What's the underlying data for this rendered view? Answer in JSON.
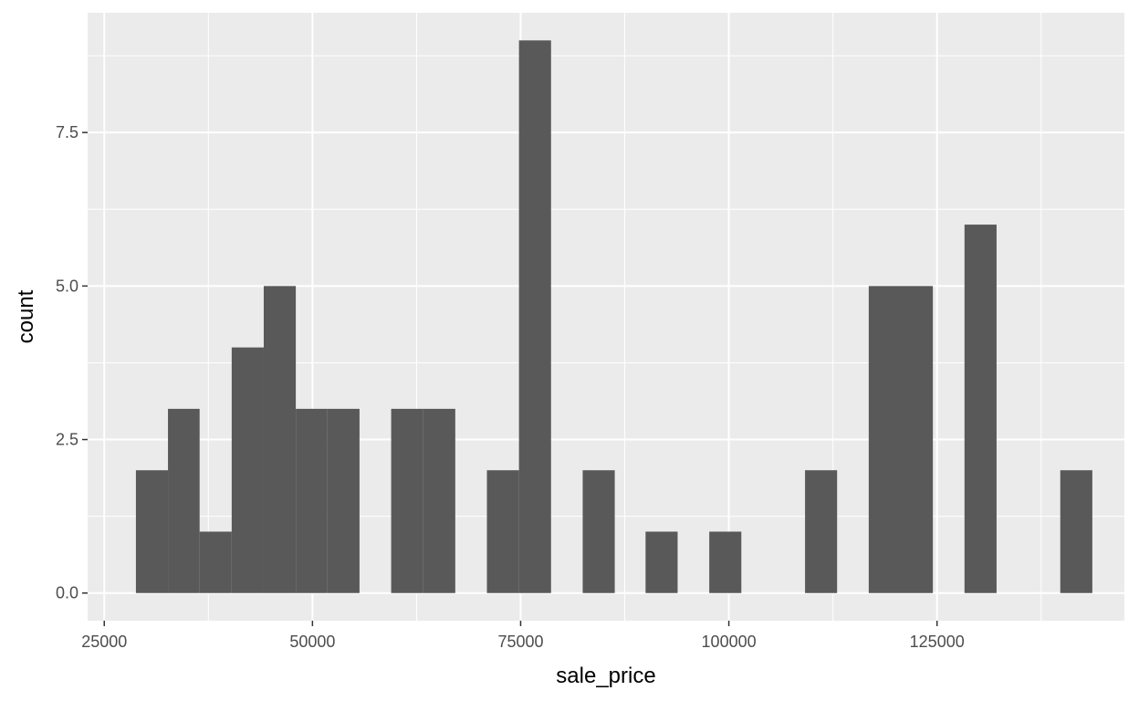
{
  "chart_data": {
    "type": "bar",
    "subtype": "histogram",
    "title": "",
    "xlabel": "sale_price",
    "ylabel": "count",
    "xlim": [
      23000,
      147500
    ],
    "ylim": [
      -0.45,
      9.45
    ],
    "x_ticks": [
      25000,
      50000,
      75000,
      100000,
      125000
    ],
    "x_tick_labels": [
      "25000",
      "50000",
      "75000",
      "100000",
      "125000"
    ],
    "y_ticks": [
      0,
      2.5,
      5,
      7.5
    ],
    "y_tick_labels": [
      "0.0",
      "2.5",
      "5.0",
      "7.5"
    ],
    "grid": true,
    "background_color": "#ebebeb",
    "grid_color": "#ffffff",
    "bar_color": "#595959",
    "bins": [
      {
        "x0": 28800,
        "x1": 32650,
        "count": 2
      },
      {
        "x0": 32650,
        "x1": 36450,
        "count": 3
      },
      {
        "x0": 36450,
        "x1": 40300,
        "count": 1
      },
      {
        "x0": 40300,
        "x1": 44150,
        "count": 4
      },
      {
        "x0": 44150,
        "x1": 48000,
        "count": 5
      },
      {
        "x0": 48000,
        "x1": 51800,
        "count": 3
      },
      {
        "x0": 51800,
        "x1": 55650,
        "count": 3
      },
      {
        "x0": 59450,
        "x1": 63300,
        "count": 3
      },
      {
        "x0": 63300,
        "x1": 67150,
        "count": 3
      },
      {
        "x0": 70950,
        "x1": 74800,
        "count": 2
      },
      {
        "x0": 74800,
        "x1": 78650,
        "count": 9
      },
      {
        "x0": 82450,
        "x1": 86300,
        "count": 2
      },
      {
        "x0": 90000,
        "x1": 93850,
        "count": 1
      },
      {
        "x0": 97650,
        "x1": 101500,
        "count": 1
      },
      {
        "x0": 109150,
        "x1": 113000,
        "count": 2
      },
      {
        "x0": 116800,
        "x1": 120650,
        "count": 5
      },
      {
        "x0": 120650,
        "x1": 124500,
        "count": 5
      },
      {
        "x0": 128300,
        "x1": 132150,
        "count": 6
      },
      {
        "x0": 139800,
        "x1": 143650,
        "count": 2
      }
    ]
  }
}
